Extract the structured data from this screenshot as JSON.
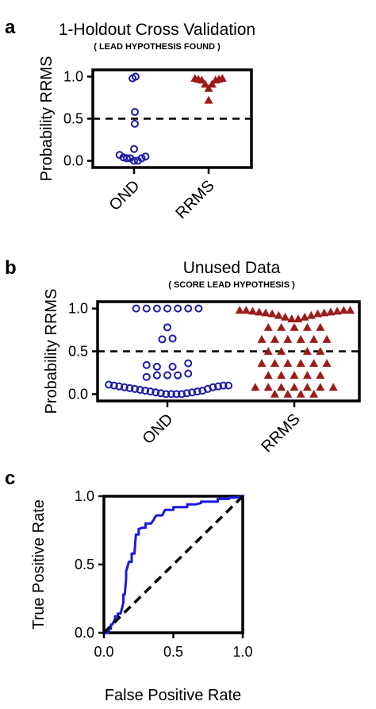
{
  "panels": {
    "a": {
      "letter": "a"
    },
    "b": {
      "letter": "b"
    },
    "c": {
      "letter": "c"
    }
  },
  "chart_data": [
    {
      "type": "scatter",
      "title": "1-Holdout Cross Validation",
      "subtitle": "( LEAD HYPOTHESIS FOUND )",
      "xlabel": "",
      "ylabel": "Probability RRMS",
      "categories": [
        "OND",
        "RRMS"
      ],
      "ylim": [
        -0.08,
        1.08
      ],
      "yticks": [
        "0.0",
        "0.5",
        "1.0"
      ],
      "threshold": 0.5,
      "grid": false,
      "series": [
        {
          "name": "OND",
          "marker": "circle-open",
          "color": "#1a1aa6",
          "points": [
            {
              "x": -0.38,
              "y": 0.07
            },
            {
              "x": -0.28,
              "y": 0.04
            },
            {
              "x": -0.19,
              "y": 0.03
            },
            {
              "x": -0.1,
              "y": 0.03
            },
            {
              "x": 0.0,
              "y": 0.0
            },
            {
              "x": 0.1,
              "y": 0.0
            },
            {
              "x": 0.2,
              "y": 0.03
            },
            {
              "x": 0.3,
              "y": 0.05
            },
            {
              "x": 0.0,
              "y": 0.14
            },
            {
              "x": 0.02,
              "y": 0.44
            },
            {
              "x": 0.02,
              "y": 0.58
            },
            {
              "x": -0.04,
              "y": 0.98
            },
            {
              "x": 0.04,
              "y": 1.0
            }
          ]
        },
        {
          "name": "RRMS",
          "marker": "triangle",
          "color": "#9b1b1b",
          "points": [
            {
              "x": -0.36,
              "y": 0.98
            },
            {
              "x": -0.27,
              "y": 0.97
            },
            {
              "x": -0.18,
              "y": 0.96
            },
            {
              "x": -0.09,
              "y": 0.91
            },
            {
              "x": 0.0,
              "y": 0.72
            },
            {
              "x": 0.0,
              "y": 0.86
            },
            {
              "x": 0.09,
              "y": 0.91
            },
            {
              "x": 0.18,
              "y": 0.96
            },
            {
              "x": 0.27,
              "y": 0.97
            },
            {
              "x": 0.36,
              "y": 0.98
            }
          ]
        }
      ]
    },
    {
      "type": "scatter",
      "title": "Unused Data",
      "subtitle": "( SCORE LEAD HYPOTHESIS )",
      "xlabel": "",
      "ylabel": "Probability RRMS",
      "categories": [
        "OND",
        "RRMS"
      ],
      "ylim": [
        -0.08,
        1.08
      ],
      "yticks": [
        "0.0",
        "0.5",
        "1.0"
      ],
      "threshold": 0.5,
      "grid": false,
      "series": [
        {
          "name": "OND",
          "marker": "circle-open",
          "color": "#1a1aa6",
          "points": [
            {
              "x": -0.9,
              "y": 0.11
            },
            {
              "x": -0.82,
              "y": 0.1
            },
            {
              "x": -0.74,
              "y": 0.09
            },
            {
              "x": -0.66,
              "y": 0.08
            },
            {
              "x": -0.58,
              "y": 0.07
            },
            {
              "x": -0.5,
              "y": 0.06
            },
            {
              "x": -0.42,
              "y": 0.05
            },
            {
              "x": -0.34,
              "y": 0.04
            },
            {
              "x": -0.26,
              "y": 0.03
            },
            {
              "x": -0.18,
              "y": 0.02
            },
            {
              "x": -0.1,
              "y": 0.01
            },
            {
              "x": -0.02,
              "y": 0.0
            },
            {
              "x": 0.06,
              "y": 0.0
            },
            {
              "x": 0.14,
              "y": 0.0
            },
            {
              "x": 0.22,
              "y": 0.0
            },
            {
              "x": 0.3,
              "y": 0.01
            },
            {
              "x": 0.38,
              "y": 0.02
            },
            {
              "x": 0.46,
              "y": 0.03
            },
            {
              "x": 0.54,
              "y": 0.04
            },
            {
              "x": 0.62,
              "y": 0.06
            },
            {
              "x": 0.7,
              "y": 0.08
            },
            {
              "x": 0.78,
              "y": 0.09
            },
            {
              "x": 0.86,
              "y": 0.1
            },
            {
              "x": 0.94,
              "y": 0.1
            },
            {
              "x": -0.32,
              "y": 0.2
            },
            {
              "x": -0.16,
              "y": 0.22
            },
            {
              "x": 0.0,
              "y": 0.22
            },
            {
              "x": 0.16,
              "y": 0.22
            },
            {
              "x": 0.32,
              "y": 0.24
            },
            {
              "x": -0.32,
              "y": 0.34
            },
            {
              "x": -0.16,
              "y": 0.32
            },
            {
              "x": 0.08,
              "y": 0.32
            },
            {
              "x": 0.32,
              "y": 0.36
            },
            {
              "x": -0.08,
              "y": 0.64
            },
            {
              "x": 0.08,
              "y": 0.65
            },
            {
              "x": 0.0,
              "y": 0.78
            },
            {
              "x": -0.48,
              "y": 1.0
            },
            {
              "x": -0.32,
              "y": 1.0
            },
            {
              "x": -0.16,
              "y": 1.0
            },
            {
              "x": 0.0,
              "y": 1.0
            },
            {
              "x": 0.16,
              "y": 1.0
            },
            {
              "x": 0.32,
              "y": 1.0
            },
            {
              "x": 0.48,
              "y": 1.0
            }
          ]
        },
        {
          "name": "RRMS",
          "marker": "triangle",
          "color": "#9b1b1b",
          "points": [
            {
              "x": -0.84,
              "y": 0.98
            },
            {
              "x": -0.74,
              "y": 0.98
            },
            {
              "x": -0.64,
              "y": 0.97
            },
            {
              "x": -0.54,
              "y": 0.96
            },
            {
              "x": -0.44,
              "y": 0.95
            },
            {
              "x": -0.34,
              "y": 0.94
            },
            {
              "x": -0.24,
              "y": 0.92
            },
            {
              "x": -0.14,
              "y": 0.9
            },
            {
              "x": -0.04,
              "y": 0.88
            },
            {
              "x": 0.06,
              "y": 0.88
            },
            {
              "x": 0.16,
              "y": 0.9
            },
            {
              "x": 0.26,
              "y": 0.92
            },
            {
              "x": 0.36,
              "y": 0.94
            },
            {
              "x": 0.46,
              "y": 0.95
            },
            {
              "x": 0.56,
              "y": 0.96
            },
            {
              "x": 0.66,
              "y": 0.97
            },
            {
              "x": 0.76,
              "y": 0.98
            },
            {
              "x": 0.86,
              "y": 0.98
            },
            {
              "x": -0.4,
              "y": 0.78
            },
            {
              "x": -0.2,
              "y": 0.78
            },
            {
              "x": 0.0,
              "y": 0.78
            },
            {
              "x": 0.2,
              "y": 0.78
            },
            {
              "x": 0.4,
              "y": 0.78
            },
            {
              "x": -0.5,
              "y": 0.64
            },
            {
              "x": -0.3,
              "y": 0.64
            },
            {
              "x": -0.1,
              "y": 0.64
            },
            {
              "x": 0.1,
              "y": 0.64
            },
            {
              "x": 0.3,
              "y": 0.64
            },
            {
              "x": 0.5,
              "y": 0.64
            },
            {
              "x": -0.4,
              "y": 0.5
            },
            {
              "x": -0.2,
              "y": 0.5
            },
            {
              "x": 0.2,
              "y": 0.5
            },
            {
              "x": 0.4,
              "y": 0.5
            },
            {
              "x": -0.5,
              "y": 0.36
            },
            {
              "x": -0.3,
              "y": 0.36
            },
            {
              "x": -0.1,
              "y": 0.36
            },
            {
              "x": 0.1,
              "y": 0.36
            },
            {
              "x": 0.3,
              "y": 0.36
            },
            {
              "x": 0.5,
              "y": 0.36
            },
            {
              "x": -0.4,
              "y": 0.22
            },
            {
              "x": -0.2,
              "y": 0.22
            },
            {
              "x": 0.0,
              "y": 0.22
            },
            {
              "x": 0.2,
              "y": 0.22
            },
            {
              "x": 0.4,
              "y": 0.22
            },
            {
              "x": -0.6,
              "y": 0.08
            },
            {
              "x": -0.4,
              "y": 0.08
            },
            {
              "x": -0.2,
              "y": 0.08
            },
            {
              "x": 0.0,
              "y": 0.08
            },
            {
              "x": 0.2,
              "y": 0.08
            },
            {
              "x": 0.4,
              "y": 0.08
            },
            {
              "x": 0.6,
              "y": 0.08
            },
            {
              "x": -0.3,
              "y": 0.0
            },
            {
              "x": -0.1,
              "y": 0.0
            },
            {
              "x": 0.1,
              "y": 0.0
            },
            {
              "x": 0.3,
              "y": 0.0
            }
          ]
        }
      ]
    },
    {
      "type": "line",
      "title": "",
      "xlabel": "False Positive Rate",
      "ylabel": "True Positive Rate",
      "xlim": [
        0,
        1
      ],
      "ylim": [
        0,
        1
      ],
      "xticks": [
        "0.0",
        "0.5",
        "1.0"
      ],
      "yticks": [
        "0.0",
        "0.5",
        "1.0"
      ],
      "grid": false,
      "series": [
        {
          "style": "solid",
          "color": "#1a1adf",
          "x": [
            0.0,
            0.03,
            0.04,
            0.05,
            0.05,
            0.06,
            0.08,
            0.08,
            0.1,
            0.1,
            0.12,
            0.14,
            0.14,
            0.15,
            0.16,
            0.16,
            0.18,
            0.2,
            0.2,
            0.22,
            0.23,
            0.25,
            0.25,
            0.28,
            0.3,
            0.3,
            0.34,
            0.36,
            0.37,
            0.38,
            0.42,
            0.43,
            0.44,
            0.47,
            0.5,
            0.5,
            0.56,
            0.6,
            0.6,
            0.66,
            0.7,
            0.7,
            0.8,
            0.82,
            0.82,
            0.86,
            0.9,
            0.9,
            0.95,
            1.0
          ],
          "y": [
            0.0,
            0.0,
            0.03,
            0.03,
            0.06,
            0.06,
            0.1,
            0.12,
            0.12,
            0.14,
            0.14,
            0.22,
            0.28,
            0.28,
            0.4,
            0.45,
            0.52,
            0.52,
            0.58,
            0.58,
            0.72,
            0.72,
            0.76,
            0.77,
            0.77,
            0.8,
            0.8,
            0.83,
            0.85,
            0.86,
            0.86,
            0.88,
            0.9,
            0.9,
            0.9,
            0.92,
            0.92,
            0.92,
            0.94,
            0.94,
            0.95,
            0.96,
            0.96,
            0.96,
            0.98,
            0.98,
            0.98,
            0.99,
            0.99,
            1.0
          ]
        },
        {
          "style": "dashed",
          "color": "#000000",
          "x": [
            0,
            1
          ],
          "y": [
            0,
            1
          ]
        }
      ]
    }
  ]
}
